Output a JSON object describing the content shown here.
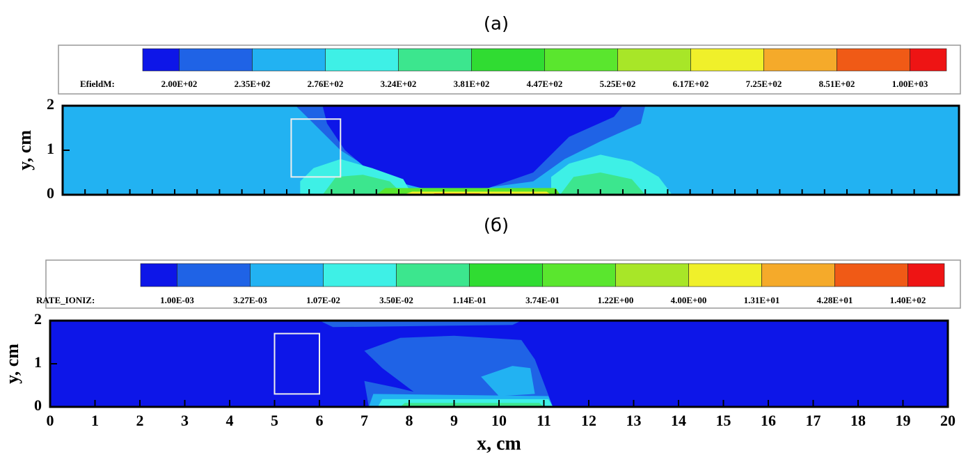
{
  "chart_data": [
    {
      "type": "contour",
      "title": "(а)",
      "colorbar_label": "EfieldM:",
      "levels": [
        {
          "value": 200,
          "label": "2.00E+02"
        },
        {
          "value": 235,
          "label": "2.35E+02"
        },
        {
          "value": 276,
          "label": "2.76E+02"
        },
        {
          "value": 324,
          "label": "3.24E+02"
        },
        {
          "value": 381,
          "label": "3.81E+02"
        },
        {
          "value": 447,
          "label": "4.47E+02"
        },
        {
          "value": 525,
          "label": "5.25E+02"
        },
        {
          "value": 617,
          "label": "6.17E+02"
        },
        {
          "value": 725,
          "label": "7.25E+02"
        },
        {
          "value": 851,
          "label": "8.51E+02"
        },
        {
          "value": 1000,
          "label": "1.00E+03"
        }
      ],
      "colors": [
        "#0d16e8",
        "#1f63e6",
        "#22b2f2",
        "#3ef0e6",
        "#3ce68e",
        "#30dc32",
        "#5ae62e",
        "#a8e628",
        "#f0f02a",
        "#f5aa2a",
        "#f05a16",
        "#ee1414"
      ],
      "y_label": "y, cm",
      "xlim": [
        0,
        20
      ],
      "ylim": [
        0,
        2
      ],
      "yticks": [
        0,
        1,
        2
      ]
    },
    {
      "type": "contour",
      "title": "(б)",
      "colorbar_label": "RATE_IONIZ:",
      "levels": [
        {
          "value": 0.001,
          "label": "1.00E-03"
        },
        {
          "value": 0.00327,
          "label": "3.27E-03"
        },
        {
          "value": 0.0107,
          "label": "1.07E-02"
        },
        {
          "value": 0.035,
          "label": "3.50E-02"
        },
        {
          "value": 0.114,
          "label": "1.14E-01"
        },
        {
          "value": 0.374,
          "label": "3.74E-01"
        },
        {
          "value": 1.22,
          "label": "1.22E+00"
        },
        {
          "value": 4,
          "label": "4.00E+00"
        },
        {
          "value": 13.1,
          "label": "1.31E+01"
        },
        {
          "value": 42.8,
          "label": "4.28E+01"
        },
        {
          "value": 140,
          "label": "1.40E+02"
        }
      ],
      "colors": [
        "#0d16e8",
        "#1f63e6",
        "#22b2f2",
        "#3ef0e6",
        "#3ce68e",
        "#30dc32",
        "#5ae62e",
        "#a8e628",
        "#f0f02a",
        "#f5aa2a",
        "#f05a16",
        "#ee1414"
      ],
      "x_label": "x, cm",
      "y_label": "y, cm",
      "xlim": [
        0,
        20
      ],
      "ylim": [
        0,
        2
      ],
      "xticks": [
        0,
        1,
        2,
        3,
        4,
        5,
        6,
        7,
        8,
        9,
        10,
        11,
        12,
        13,
        14,
        15,
        16,
        17,
        18,
        19,
        20
      ],
      "yticks": [
        0,
        1,
        2
      ]
    }
  ]
}
